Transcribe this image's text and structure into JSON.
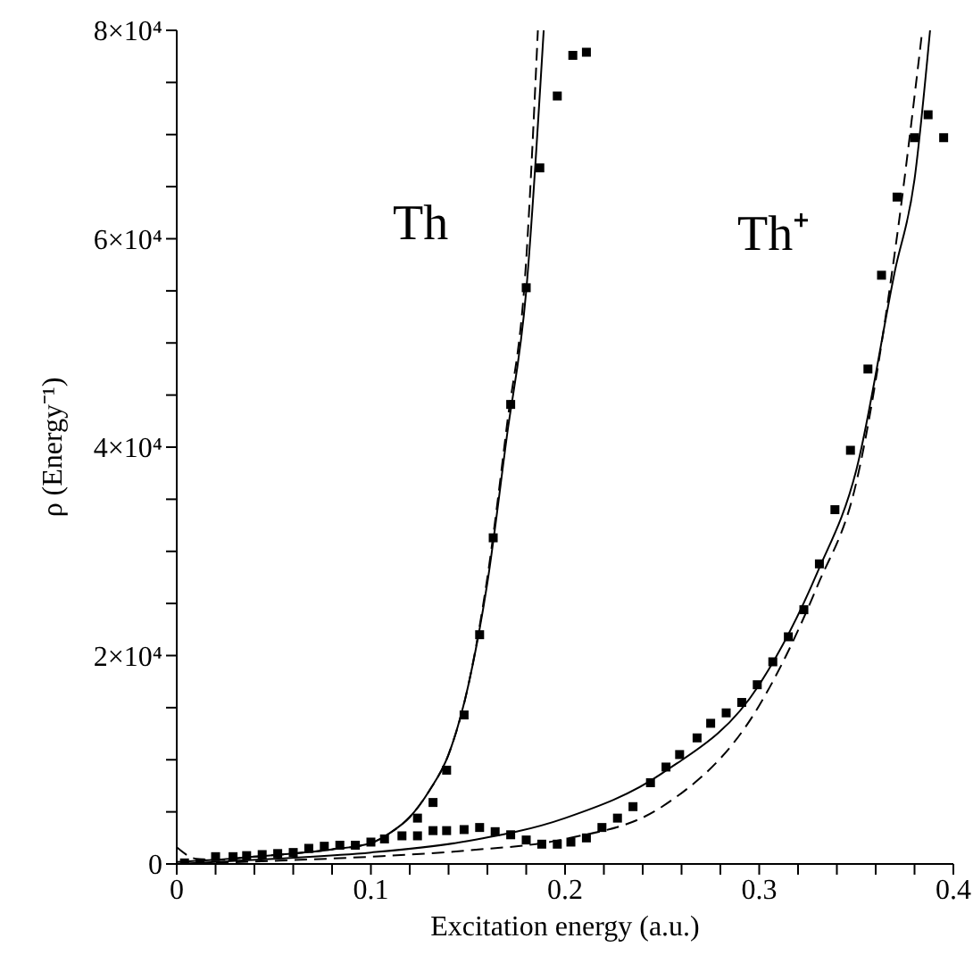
{
  "chart_data": {
    "type": "scatter",
    "xlabel": "Excitation energy (a.u.)",
    "ylabel": "ρ (Energy⁻¹)",
    "xlim": [
      0,
      0.4
    ],
    "ylim": [
      0,
      80000
    ],
    "xticks": [
      0,
      {
        "value": 0.02,
        "label": null
      },
      {
        "value": 0.04,
        "label": null
      },
      {
        "value": 0.06,
        "label": null
      },
      {
        "value": 0.08,
        "label": null
      },
      0.1,
      {
        "value": 0.12,
        "label": null
      },
      {
        "value": 0.14,
        "label": null
      },
      {
        "value": 0.16,
        "label": null
      },
      {
        "value": 0.18,
        "label": null
      },
      0.2,
      {
        "value": 0.22,
        "label": null
      },
      {
        "value": 0.24,
        "label": null
      },
      {
        "value": 0.26,
        "label": null
      },
      {
        "value": 0.28,
        "label": null
      },
      0.3,
      {
        "value": 0.32,
        "label": null
      },
      {
        "value": 0.34,
        "label": null
      },
      {
        "value": 0.36,
        "label": null
      },
      {
        "value": 0.38,
        "label": null
      },
      0.4
    ],
    "yticks": [
      0,
      {
        "value": 5000,
        "label": null
      },
      {
        "value": 10000,
        "label": null
      },
      {
        "value": 15000,
        "label": null
      },
      {
        "value": 20000,
        "label": "2×10⁴"
      },
      {
        "value": 25000,
        "label": null
      },
      {
        "value": 30000,
        "label": null
      },
      {
        "value": 35000,
        "label": null
      },
      {
        "value": 40000,
        "label": "4×10⁴"
      },
      {
        "value": 45000,
        "label": null
      },
      {
        "value": 50000,
        "label": null
      },
      {
        "value": 55000,
        "label": null
      },
      {
        "value": 60000,
        "label": "6×10⁴"
      },
      {
        "value": 65000,
        "label": null
      },
      {
        "value": 70000,
        "label": null
      },
      {
        "value": 75000,
        "label": null
      },
      {
        "value": 80000,
        "label": "8×10⁴"
      }
    ],
    "grid": false,
    "legend": false,
    "annotations": [
      "Th",
      "Th⁺"
    ],
    "series": [
      {
        "marker": "square",
        "color": "#000000",
        "x": [
          0.004,
          0.012,
          0.02,
          0.029,
          0.036,
          0.044,
          0.052,
          0.06,
          0.068,
          0.076,
          0.084,
          0.092,
          0.1,
          0.107,
          0.116,
          0.124,
          0.132,
          0.139,
          0.148,
          0.156,
          0.163,
          0.172,
          0.18,
          0.187,
          0.196,
          0.204,
          0.211
        ],
        "values": [
          100,
          100,
          700,
          700,
          800,
          900,
          1000,
          1100,
          1500,
          1700,
          1800,
          1800,
          2100,
          2400,
          null,
          4400,
          5900,
          9000,
          14300,
          22000,
          31300,
          44100,
          55300,
          66800,
          73700,
          77600,
          77900
        ]
      },
      {
        "marker": "square",
        "color": "#000000",
        "x": [
          0.116,
          0.124,
          0.132,
          0.139,
          0.148,
          0.156,
          0.164,
          0.172,
          0.18,
          0.188,
          0.196,
          0.203,
          0.211,
          0.219,
          0.227,
          0.235,
          0.244,
          0.252,
          0.259,
          0.268,
          0.275,
          0.283,
          0.291,
          0.299,
          0.307,
          0.315,
          0.323,
          0.331,
          0.339,
          0.347,
          0.356,
          0.363,
          0.371,
          0.38,
          0.387,
          0.395
        ],
        "values": [
          2700,
          2700,
          3200,
          3200,
          3300,
          3500,
          3100,
          2800,
          2300,
          1900,
          1900,
          2100,
          2500,
          3500,
          4400,
          5500,
          7800,
          9300,
          10500,
          12100,
          13500,
          14500,
          15500,
          17200,
          19400,
          21800,
          24400,
          28800,
          34000,
          39700,
          47500,
          56500,
          64000,
          69700,
          71900,
          69700
        ]
      },
      {
        "type": "line",
        "line_style": "solid",
        "marker": "none",
        "color": "#000000",
        "x": [
          0,
          0.02,
          0.04,
          0.06,
          0.08,
          0.1,
          0.11,
          0.12,
          0.13,
          0.14,
          0.15,
          0.16,
          0.17,
          0.18,
          0.189
        ],
        "values": [
          200,
          400,
          700,
          1000,
          1400,
          2000,
          3000,
          4500,
          7000,
          10500,
          17000,
          27000,
          41000,
          55000,
          80000
        ]
      },
      {
        "type": "line",
        "line_style": "dashed",
        "marker": "none",
        "color": "#000000",
        "x": [
          0,
          0.01,
          0.02,
          0.04,
          0.06,
          0.08,
          0.1,
          0.11,
          0.12,
          0.13,
          0.14,
          0.15,
          0.16,
          0.17,
          0.18,
          0.186
        ],
        "values": [
          1600,
          500,
          400,
          700,
          1000,
          1400,
          2000,
          3000,
          4500,
          7000,
          10500,
          17000,
          27500,
          42000,
          58000,
          80000
        ]
      },
      {
        "type": "line",
        "line_style": "solid",
        "marker": "none",
        "color": "#000000",
        "x": [
          0,
          0.05,
          0.1,
          0.15,
          0.2,
          0.25,
          0.3,
          0.33,
          0.35,
          0.37,
          0.38,
          0.388
        ],
        "values": [
          0,
          500,
          1100,
          2200,
          4400,
          8700,
          17200,
          28000,
          37800,
          57000,
          65700,
          80000
        ]
      },
      {
        "type": "line",
        "line_style": "dashed",
        "marker": "none",
        "color": "#000000",
        "x": [
          0,
          0.05,
          0.1,
          0.15,
          0.2,
          0.25,
          0.3,
          0.33,
          0.35,
          0.37,
          0.384
        ],
        "values": [
          0,
          300,
          700,
          1300,
          2400,
          5500,
          15200,
          26700,
          36600,
          58900,
          80000
        ]
      }
    ]
  }
}
